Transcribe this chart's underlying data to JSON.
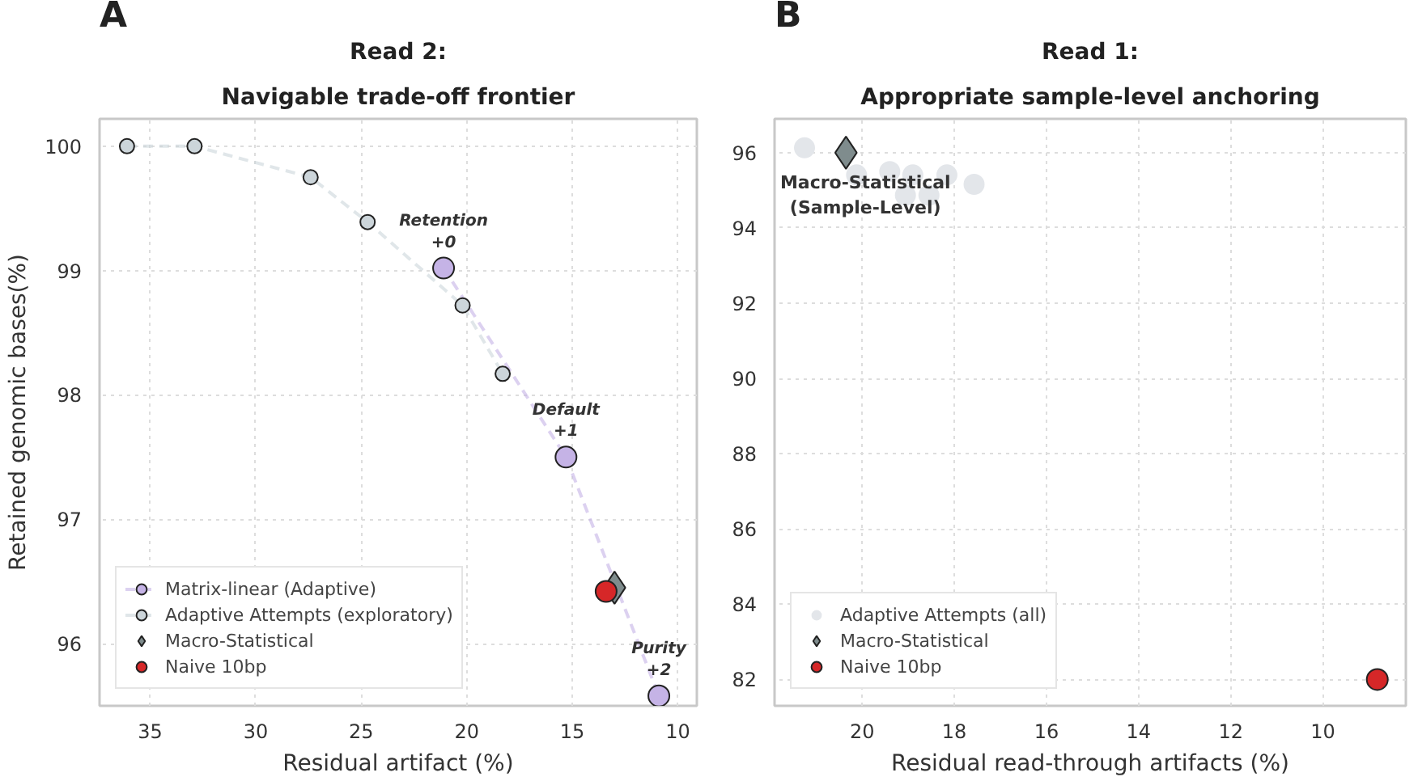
{
  "chart_data": [
    {
      "type": "scatter",
      "title": "Read 2:",
      "subtitle": "Navigable trade-off frontier",
      "xlabel": "Residual artifact (%)",
      "ylabel": "Retained genomic bases(%)",
      "xlim": [
        37.4,
        9.1
      ],
      "ylim": [
        95.5,
        100.22
      ],
      "xticks": [
        35,
        30,
        25,
        20,
        15,
        10
      ],
      "yticks": [
        96,
        97,
        98,
        99,
        100
      ],
      "grid": true,
      "legend": "bottom left",
      "series": [
        {
          "name": "Matrix-linear (Adaptive)",
          "type": "line",
          "color": "#c5b3e6",
          "marker": "circle",
          "line_style": "dashed",
          "x": [
            21.1,
            15.3,
            10.9
          ],
          "values": [
            99.02,
            97.5,
            95.58
          ]
        },
        {
          "name": "Adaptive Attempts (exploratory)",
          "type": "line",
          "color": "#ccd5da",
          "marker": "circle",
          "line_style": "dashed",
          "x": [
            36.1,
            32.9,
            27.4,
            24.7,
            20.2,
            18.3
          ],
          "values": [
            100,
            100,
            99.75,
            99.39,
            98.72,
            98.17
          ]
        },
        {
          "name": "Macro-Statistical",
          "type": "scatter",
          "color": "#7f8c8d",
          "marker": "diamond",
          "x": [
            13.0
          ],
          "values": [
            96.45
          ]
        },
        {
          "name": "Naive 10bp",
          "type": "scatter",
          "color": "#d62728",
          "marker": "circle",
          "x": [
            13.4
          ],
          "values": [
            96.42
          ]
        }
      ],
      "annotations": [
        "A",
        {
          "text": "Retention\n+0",
          "x": 21.1,
          "y": 99.02
        },
        {
          "text": "Default\n+1",
          "x": 15.3,
          "y": 97.5
        },
        {
          "text": "Purity\n+2",
          "x": 10.9,
          "y": 95.58
        }
      ]
    },
    {
      "type": "scatter",
      "title": "Read 1:",
      "subtitle": "Appropriate sample-level anchoring",
      "xlabel": "Residual read-through artifacts (%)",
      "xlim": [
        21.9,
        8.2
      ],
      "ylim": [
        81.3,
        96.9
      ],
      "xticks": [
        20,
        18,
        16,
        14,
        12,
        10
      ],
      "yticks": [
        82,
        84,
        86,
        88,
        90,
        92,
        94,
        96
      ],
      "grid": true,
      "legend": "bottom left",
      "series": [
        {
          "name": "Adaptive Attempts (all)",
          "type": "scatter",
          "color": "#e3e6ea",
          "marker": "circle",
          "x": [
            21.25,
            20.12,
            19.4,
            18.9,
            18.16,
            17.57,
            19.06,
            18.55
          ],
          "values": [
            96.13,
            95.41,
            95.5,
            95.41,
            95.41,
            95.16,
            94.87,
            94.87
          ]
        },
        {
          "name": "Macro-Statistical",
          "type": "scatter",
          "color": "#7f8c8d",
          "marker": "diamond",
          "x": [
            20.35
          ],
          "values": [
            96.0
          ]
        },
        {
          "name": "Naive 10bp",
          "type": "scatter",
          "color": "#d62728",
          "marker": "circle",
          "x": [
            8.82
          ],
          "values": [
            82.0
          ]
        }
      ],
      "annotations": [
        "B",
        {
          "text": "Macro-Statistical\n(Sample-Level)",
          "x": 20.35,
          "y": 96.0
        }
      ]
    }
  ]
}
